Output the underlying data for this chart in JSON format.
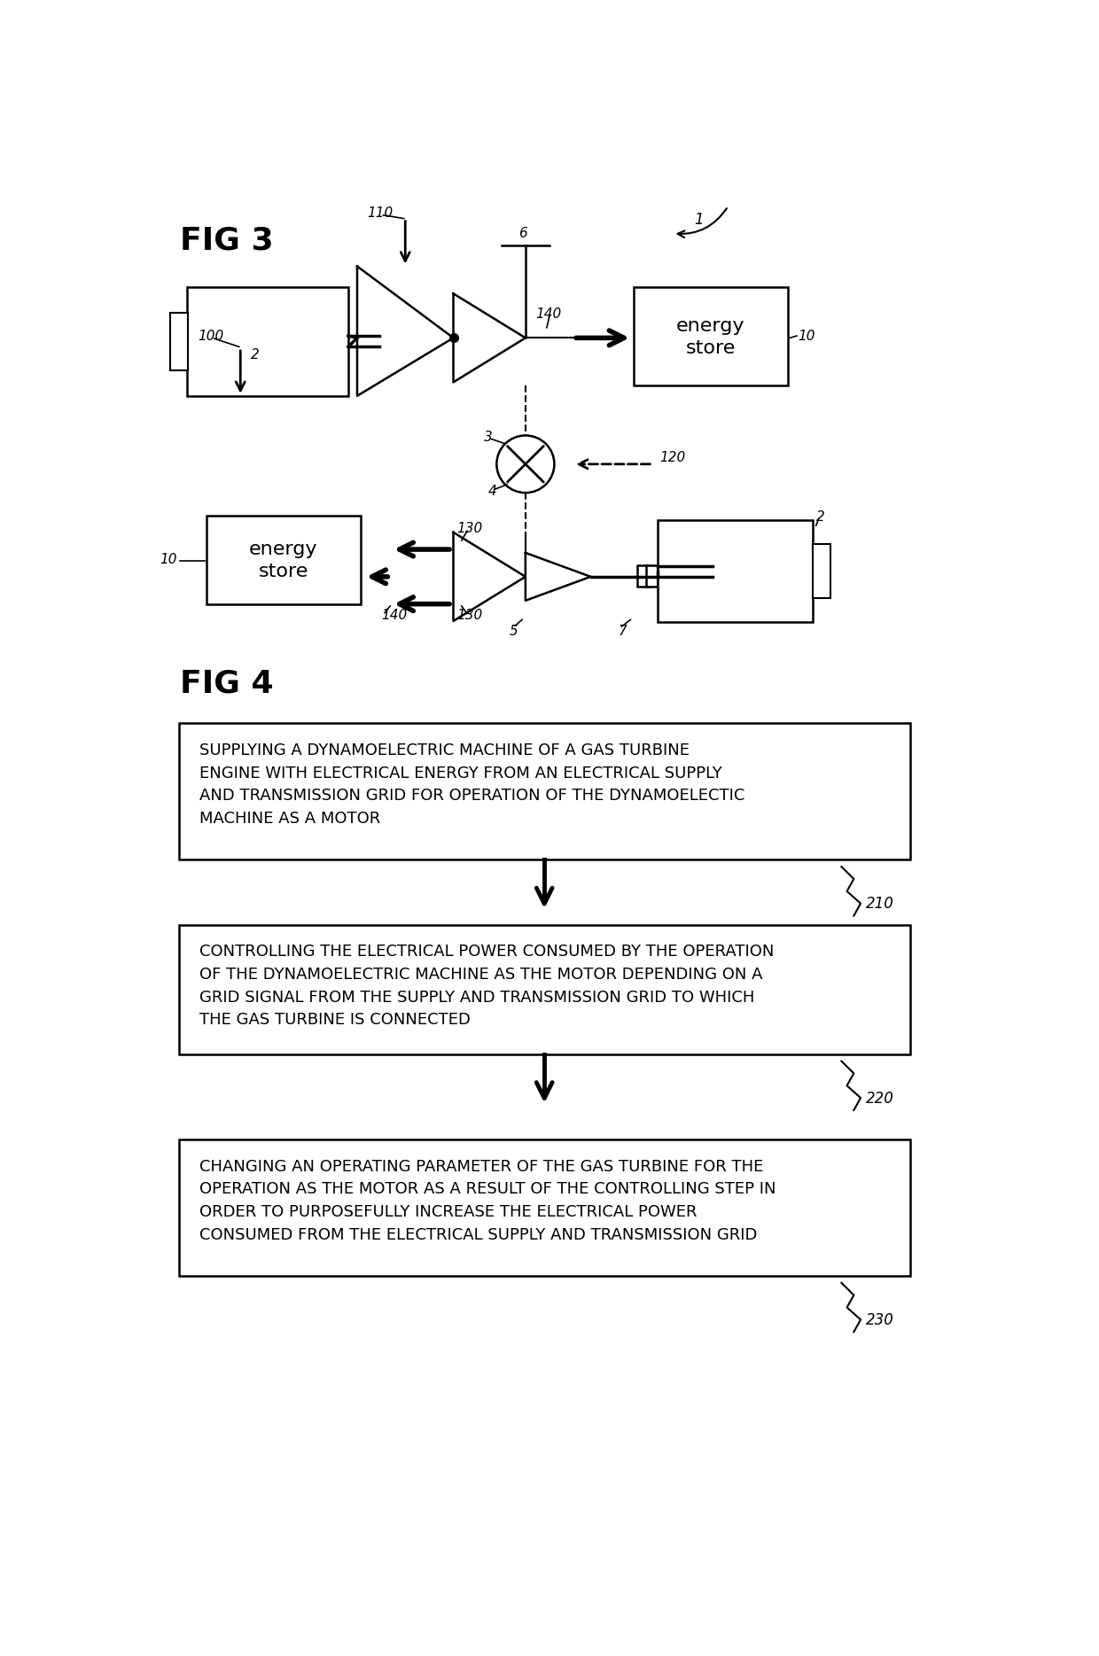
{
  "fig_width": 12.4,
  "fig_height": 18.69,
  "bg_color": "#ffffff",
  "fig3_label": "FIG 3",
  "fig4_label": "FIG 4",
  "flow_box1_text": "SUPPLYING A DYNAMOELECTRIC MACHINE OF A GAS TURBINE\nENGINE WITH ELECTRICAL ENERGY FROM AN ELECTRICAL SUPPLY\nAND TRANSMISSION GRID FOR OPERATION OF THE DYNAMOELECTIC\nMACHINE AS A MOTOR",
  "flow_box2_text": "CONTROLLING THE ELECTRICAL POWER CONSUMED BY THE OPERATION\nOF THE DYNAMOELECTRIC MACHINE AS THE MOTOR DEPENDING ON A\nGRID SIGNAL FROM THE SUPPLY AND TRANSMISSION GRID TO WHICH\nTHE GAS TURBINE IS CONNECTED",
  "flow_box3_text": "CHANGING AN OPERATING PARAMETER OF THE GAS TURBINE FOR THE\nOPERATION AS THE MOTOR AS A RESULT OF THE CONTROLLING STEP IN\nORDER TO PURPOSEFULLY INCREASE THE ELECTRICAL POWER\nCONSUMED FROM THE ELECTRICAL SUPPLY AND TRANSMISSION GRID",
  "ref210": "210",
  "ref220": "220",
  "ref230": "230",
  "line_color": "#000000",
  "text_color": "#000000"
}
